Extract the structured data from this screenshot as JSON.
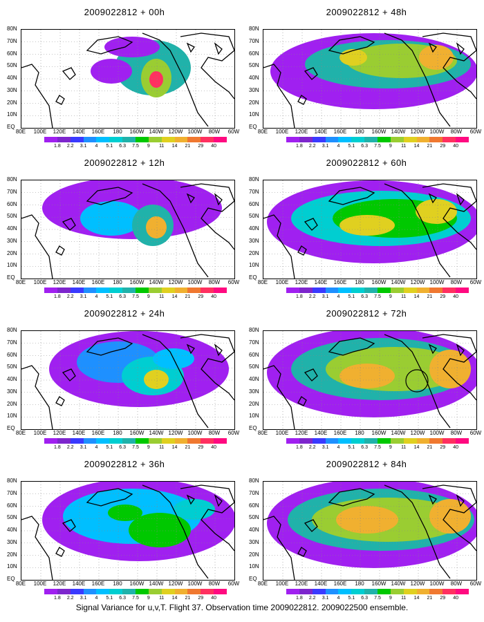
{
  "caption": "Signal Variance for u,v,T. Flight 37. Observation time 2009022812. 2009022500 ensemble.",
  "panels": [
    {
      "title": "2009022812 + 00h"
    },
    {
      "title": "2009022812 + 48h"
    },
    {
      "title": "2009022812 + 12h"
    },
    {
      "title": "2009022812 + 60h"
    },
    {
      "title": "2009022812 + 24h"
    },
    {
      "title": "2009022812 + 72h"
    },
    {
      "title": "2009022812 + 36h"
    },
    {
      "title": "2009022812 + 84h"
    }
  ],
  "lat_labels": [
    "80N",
    "70N",
    "60N",
    "50N",
    "40N",
    "30N",
    "20N",
    "10N",
    "EQ"
  ],
  "lon_labels": [
    "80E",
    "100E",
    "120E",
    "140E",
    "160E",
    "180",
    "160W",
    "140W",
    "120W",
    "100W",
    "80W",
    "60W"
  ],
  "colorbar": {
    "labels": [
      "1.8",
      "2.2",
      "3.1",
      "4",
      "5.1",
      "6.3",
      "7.5",
      "9",
      "11",
      "14",
      "21",
      "29",
      "40"
    ],
    "colors": [
      "#a020f0",
      "#7d26cd",
      "#3a3aff",
      "#1e90ff",
      "#00bfff",
      "#00ced1",
      "#20b2aa",
      "#00c800",
      "#9acd32",
      "#e0d020",
      "#f0b030",
      "#f07830",
      "#ff3060",
      "#ff0a80"
    ]
  },
  "colors": {
    "coast": "#000000",
    "grid": "#888888"
  }
}
